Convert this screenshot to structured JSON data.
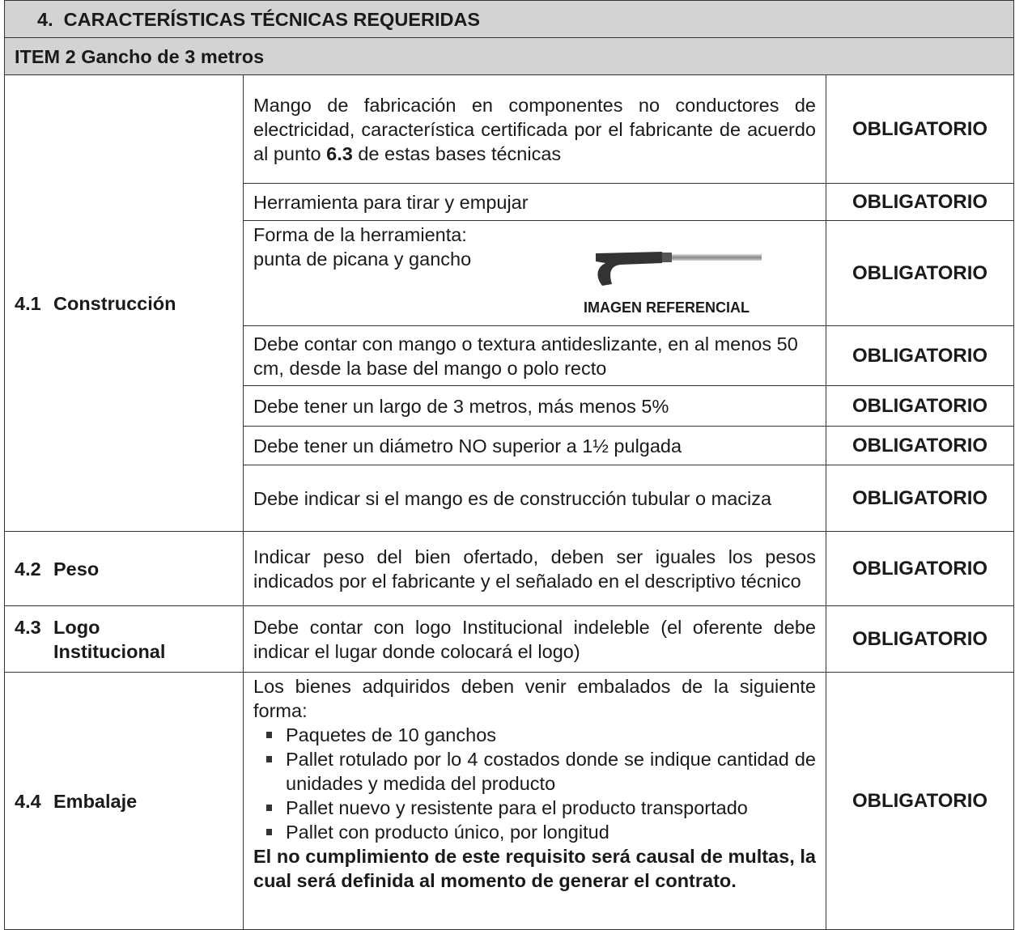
{
  "header": {
    "section_number": "4.",
    "section_title": "CARACTERÍSTICAS TÉCNICAS REQUERIDAS",
    "item_title": "ITEM 2 Gancho de 3 metros"
  },
  "groups": [
    {
      "number": "4.1",
      "name": "Construcción",
      "rows": [
        {
          "description_parts": [
            "Mango de fabricación en componentes no conductores de electricidad, característica certificada por el fabricante de acuerdo al punto ",
            "6.3",
            " de estas bases técnicas"
          ],
          "requirement": "OBLIGATORIO"
        },
        {
          "description": "Herramienta para tirar y empujar",
          "requirement": "OBLIGATORIO"
        },
        {
          "description_lines": [
            "Forma de la herramienta:",
            "punta de picana y gancho"
          ],
          "image_caption": "IMAGEN REFERENCIAL",
          "requirement": "OBLIGATORIO"
        },
        {
          "description": "Debe contar con mango o textura antideslizante, en al menos 50 cm, desde la base del mango o polo recto",
          "requirement": "OBLIGATORIO"
        },
        {
          "description": "Debe tener un largo de 3 metros, más menos 5%",
          "requirement": "OBLIGATORIO"
        },
        {
          "description": "Debe tener un diámetro NO superior a 1½ pulgada",
          "requirement": "OBLIGATORIO"
        },
        {
          "description": "Debe indicar si el mango es de construcción tubular o maciza",
          "requirement": "OBLIGATORIO"
        }
      ]
    },
    {
      "number": "4.2",
      "name": "Peso",
      "rows": [
        {
          "description": "Indicar peso del bien ofertado, deben ser iguales los pesos indicados por el fabricante y el señalado en el descriptivo técnico",
          "requirement": "OBLIGATORIO"
        }
      ]
    },
    {
      "number": "4.3",
      "name": "Logo Institucional",
      "rows": [
        {
          "description": "Debe contar con logo Institucional indeleble (el oferente debe indicar el lugar donde colocará el logo)",
          "requirement": "OBLIGATORIO"
        }
      ]
    },
    {
      "number": "4.4",
      "name": "Embalaje",
      "rows": [
        {
          "intro": "Los bienes adquiridos deben venir embalados de la siguiente forma:",
          "bullets": [
            "Paquetes de 10 ganchos",
            "Pallet rotulado por lo 4 costados donde se indique cantidad de unidades y medida del producto",
            "Pallet nuevo y resistente para el producto transportado",
            "Pallet con producto único, por longitud"
          ],
          "note": "El no cumplimiento de este requisito será causal de multas, la cual será definida al momento de generar el contrato.",
          "requirement": "OBLIGATORIO"
        }
      ]
    }
  ]
}
